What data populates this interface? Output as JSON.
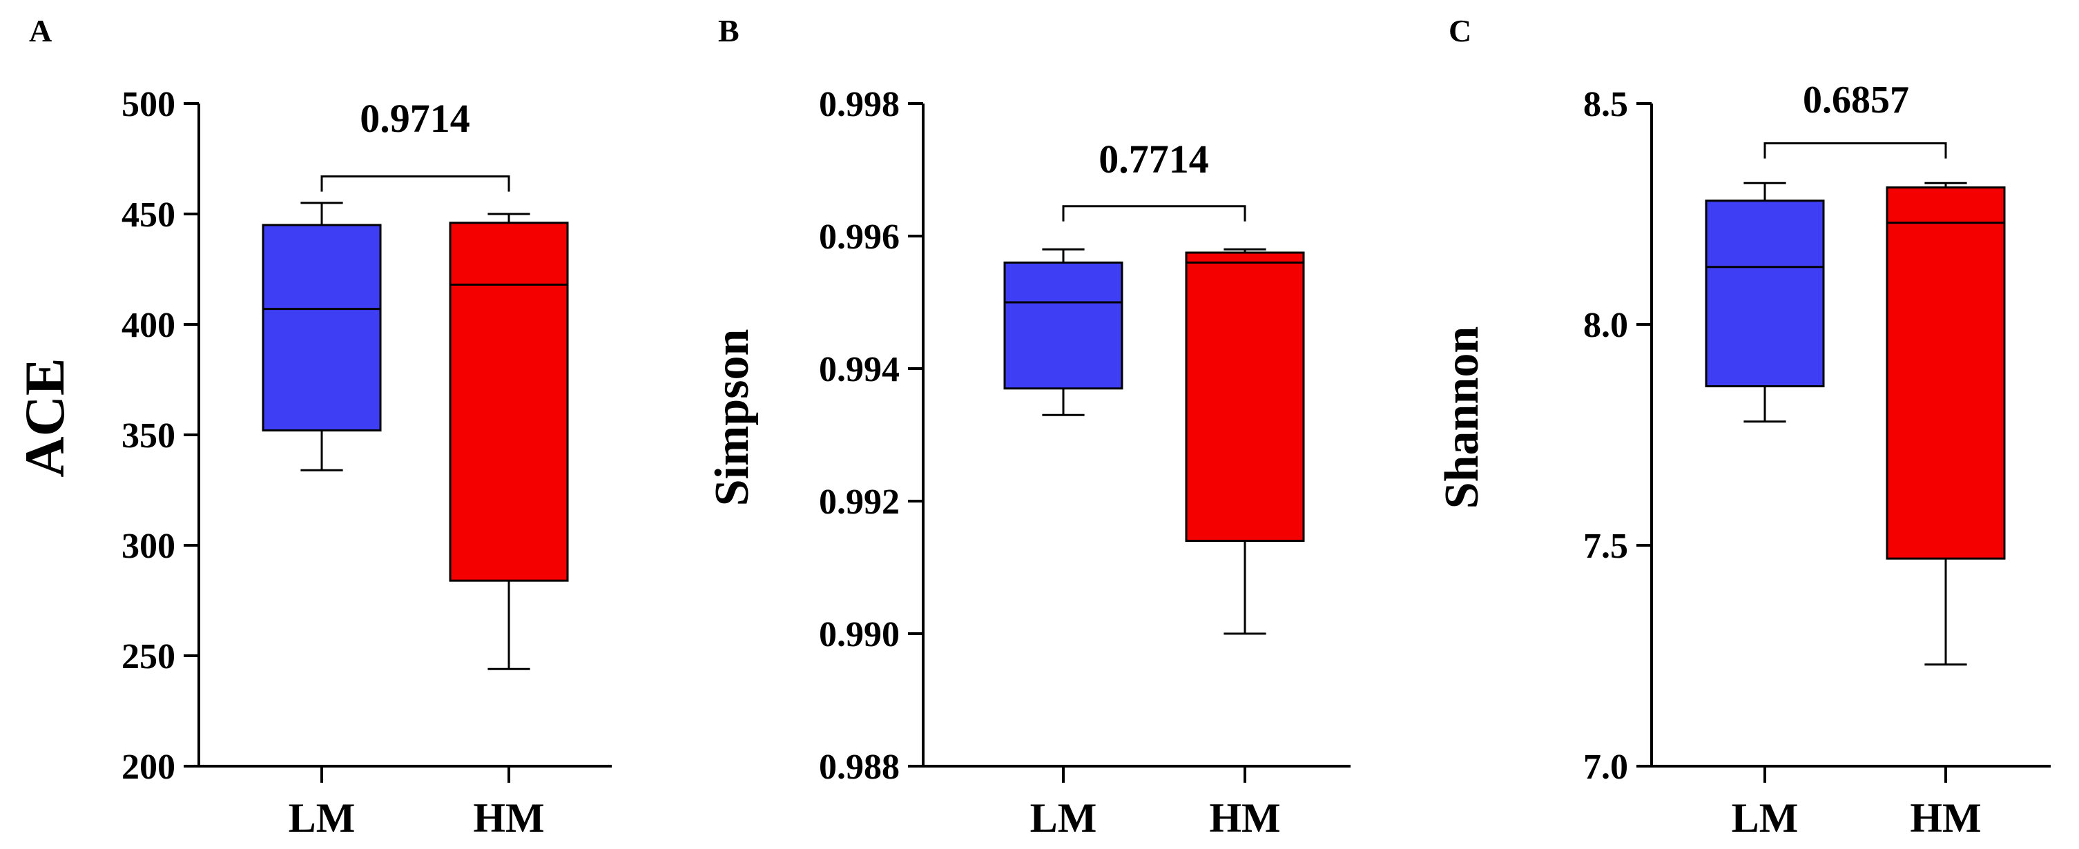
{
  "figure": {
    "panel_count": 3
  },
  "chart_data": [
    {
      "panel_label": "A",
      "type": "box",
      "ylabel": "ACE",
      "ylim": [
        200,
        500
      ],
      "yticks": [
        200,
        250,
        300,
        350,
        400,
        450,
        500
      ],
      "ytick_labels": [
        "200",
        "250",
        "300",
        "350",
        "400",
        "450",
        "500"
      ],
      "categories": [
        "LM",
        "HM"
      ],
      "series": [
        {
          "name": "LM",
          "color": "#3e3ef5",
          "min": 334,
          "q1": 352,
          "median": 407,
          "q3": 445,
          "max": 455
        },
        {
          "name": "HM",
          "color": "#f50000",
          "min": 244,
          "q1": 284,
          "median": 418,
          "q3": 446,
          "max": 450
        }
      ],
      "pvalue": "0.9714",
      "pvalue_bracket_y": 467
    },
    {
      "panel_label": "B",
      "type": "box",
      "ylabel": "Simpson",
      "ylim": [
        0.988,
        0.998
      ],
      "yticks": [
        0.988,
        0.99,
        0.992,
        0.994,
        0.996,
        0.998
      ],
      "ytick_labels": [
        "0.988",
        "0.990",
        "0.992",
        "0.994",
        "0.996",
        "0.998"
      ],
      "categories": [
        "LM",
        "HM"
      ],
      "series": [
        {
          "name": "LM",
          "color": "#3e3ef5",
          "min": 0.9933,
          "q1": 0.9937,
          "median": 0.995,
          "q3": 0.9956,
          "max": 0.9958
        },
        {
          "name": "HM",
          "color": "#f50000",
          "min": 0.99,
          "q1": 0.9914,
          "median": 0.9956,
          "q3": 0.99575,
          "max": 0.9958
        }
      ],
      "pvalue": "0.7714",
      "pvalue_bracket_y": 0.99645
    },
    {
      "panel_label": "C",
      "type": "box",
      "ylabel": "Shannon",
      "ylim": [
        7.0,
        8.5
      ],
      "yticks": [
        7.0,
        7.5,
        8.0,
        8.5
      ],
      "ytick_labels": [
        "7.0",
        "7.5",
        "8.0",
        "8.5"
      ],
      "categories": [
        "LM",
        "HM"
      ],
      "series": [
        {
          "name": "LM",
          "color": "#3e3ef5",
          "min": 7.78,
          "q1": 7.86,
          "median": 8.13,
          "q3": 8.28,
          "max": 8.32
        },
        {
          "name": "HM",
          "color": "#f50000",
          "min": 7.23,
          "q1": 7.47,
          "median": 8.23,
          "q3": 8.31,
          "max": 8.32
        }
      ],
      "pvalue": "0.6857",
      "pvalue_bracket_y": 8.41
    }
  ]
}
